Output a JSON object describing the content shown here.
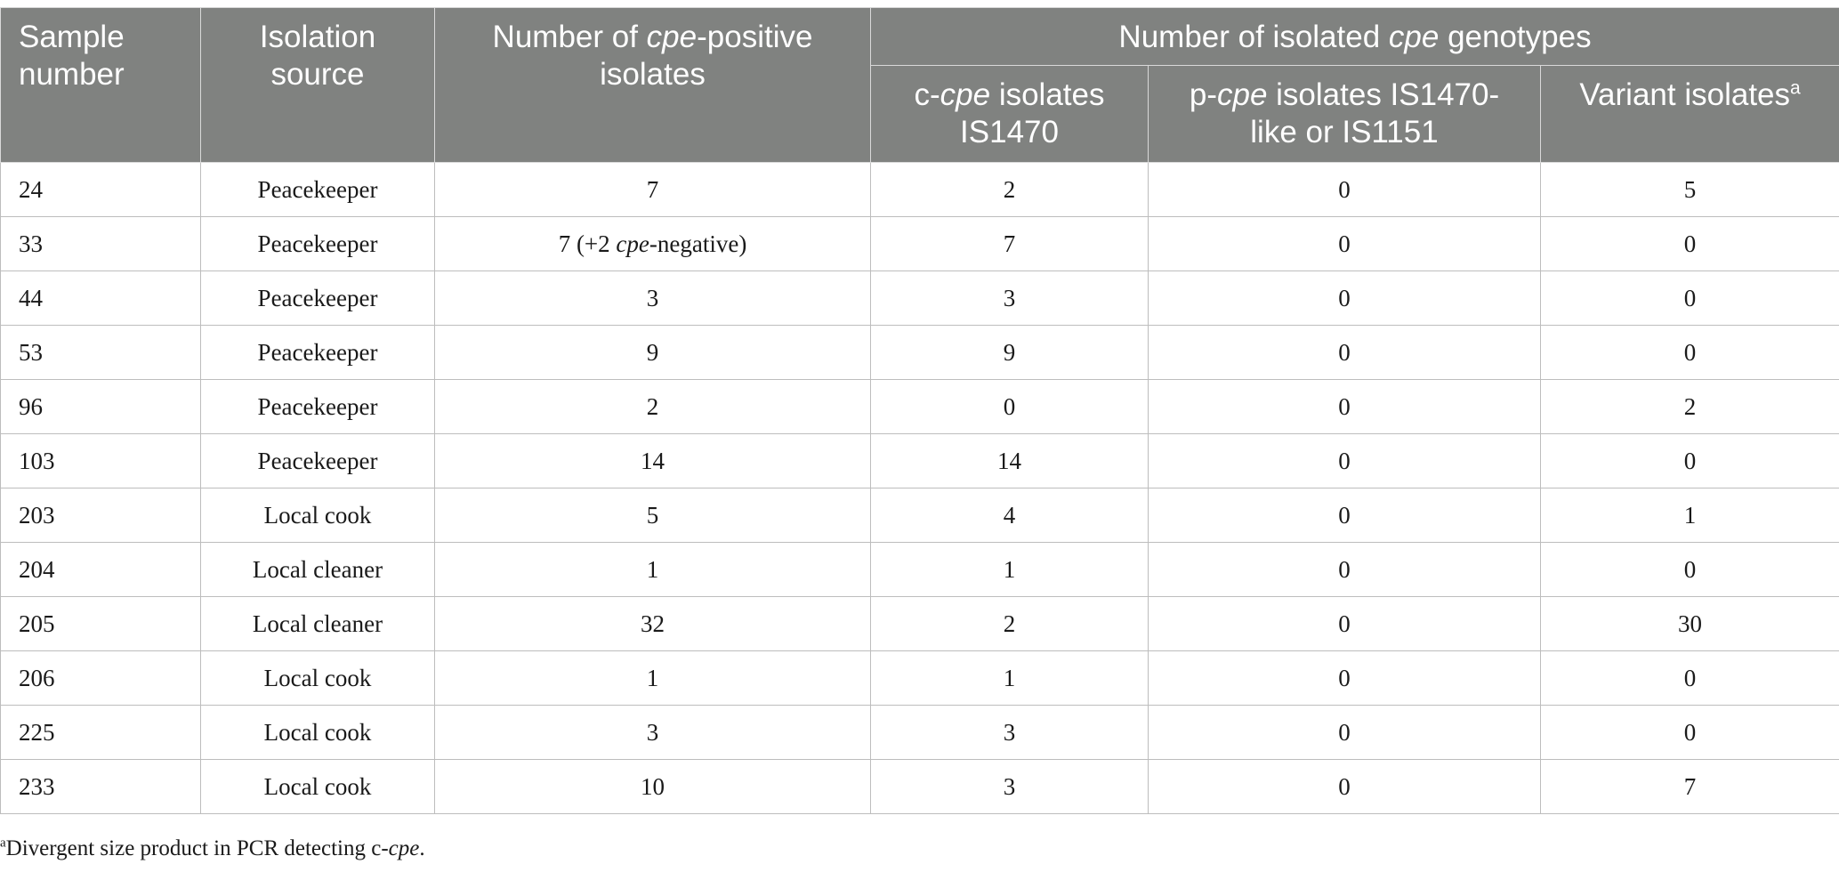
{
  "header": {
    "sample_number": "Sample number",
    "isolation_source": "Isolation source",
    "num_cpe_positive_prefix": "Number of ",
    "num_cpe_positive_italic": "cpe",
    "num_cpe_positive_suffix": "-positive isolates",
    "group_prefix": "Number of isolated ",
    "group_italic": "cpe",
    "group_suffix": " genotypes",
    "c_cpe_prefix": "c-",
    "c_cpe_italic": "cpe",
    "c_cpe_suffix": " isolates IS1470",
    "p_cpe_prefix": "p-",
    "p_cpe_italic": "cpe",
    "p_cpe_suffix": " isolates IS1470-like or IS1151",
    "variant_label": "Variant isolates",
    "variant_sup": "a"
  },
  "rows": [
    {
      "sample": "24",
      "source": "Peacekeeper",
      "positive": "7",
      "positive_note": "",
      "c_cpe": "2",
      "p_cpe": "0",
      "variant": "5"
    },
    {
      "sample": "33",
      "source": "Peacekeeper",
      "positive": "7 (+2 ",
      "positive_note": "cpe",
      "positive_after": "-negative)",
      "c_cpe": "7",
      "p_cpe": "0",
      "variant": "0"
    },
    {
      "sample": "44",
      "source": "Peacekeeper",
      "positive": "3",
      "positive_note": "",
      "c_cpe": "3",
      "p_cpe": "0",
      "variant": "0"
    },
    {
      "sample": "53",
      "source": "Peacekeeper",
      "positive": "9",
      "positive_note": "",
      "c_cpe": "9",
      "p_cpe": "0",
      "variant": "0"
    },
    {
      "sample": "96",
      "source": "Peacekeeper",
      "positive": "2",
      "positive_note": "",
      "c_cpe": "0",
      "p_cpe": "0",
      "variant": "2"
    },
    {
      "sample": "103",
      "source": "Peacekeeper",
      "positive": "14",
      "positive_note": "",
      "c_cpe": "14",
      "p_cpe": "0",
      "variant": "0"
    },
    {
      "sample": "203",
      "source": "Local cook",
      "positive": "5",
      "positive_note": "",
      "c_cpe": "4",
      "p_cpe": "0",
      "variant": "1"
    },
    {
      "sample": "204",
      "source": "Local cleaner",
      "positive": "1",
      "positive_note": "",
      "c_cpe": "1",
      "p_cpe": "0",
      "variant": "0"
    },
    {
      "sample": "205",
      "source": "Local cleaner",
      "positive": "32",
      "positive_note": "",
      "c_cpe": "2",
      "p_cpe": "0",
      "variant": "30"
    },
    {
      "sample": "206",
      "source": "Local cook",
      "positive": "1",
      "positive_note": "",
      "c_cpe": "1",
      "p_cpe": "0",
      "variant": "0"
    },
    {
      "sample": "225",
      "source": "Local cook",
      "positive": "3",
      "positive_note": "",
      "c_cpe": "3",
      "p_cpe": "0",
      "variant": "0"
    },
    {
      "sample": "233",
      "source": "Local cook",
      "positive": "10",
      "positive_note": "",
      "c_cpe": "3",
      "p_cpe": "0",
      "variant": "7"
    }
  ],
  "footnote": {
    "sup": "a",
    "text_prefix": "Divergent size product in PCR detecting c-",
    "text_italic": "cpe",
    "text_suffix": "."
  }
}
